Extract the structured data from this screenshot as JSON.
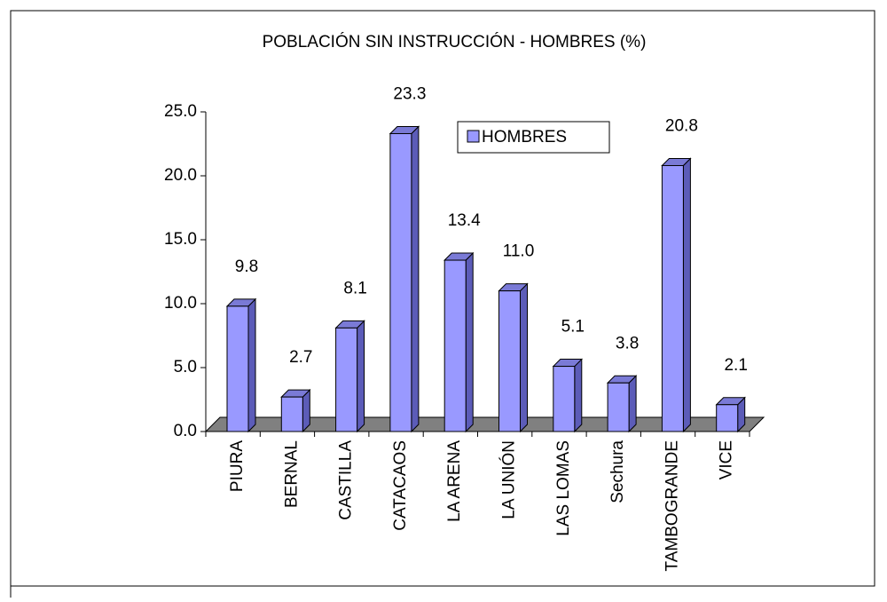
{
  "chart_data": {
    "type": "bar",
    "title": "POBLACIÓN SIN INSTRUCCIÓN - HOMBRES  (%)",
    "categories": [
      "PIURA",
      "BERNAL",
      "CASTILLA",
      "CATACAOS",
      "LA ARENA",
      "LA UNIÓN",
      "LAS LOMAS",
      "Sechura",
      "TAMBOGRANDE",
      "VICE"
    ],
    "series": [
      {
        "name": "HOMBRES",
        "color": "#9999ff",
        "values": [
          9.8,
          2.7,
          8.1,
          23.3,
          13.4,
          11.0,
          5.1,
          3.8,
          20.8,
          2.1
        ],
        "value_labels": [
          "9.8",
          "2.7",
          "8.1",
          "23.3",
          "13.4",
          "11.0",
          "5.1",
          "3.8",
          "20.8",
          "2.1"
        ]
      }
    ],
    "ylim": [
      0,
      25
    ],
    "yticks": [
      {
        "value": 0,
        "label": "0.0"
      },
      {
        "value": 5,
        "label": "5.0"
      },
      {
        "value": 10,
        "label": "10.0"
      },
      {
        "value": 15,
        "label": "15.0"
      },
      {
        "value": 20,
        "label": "20.0"
      },
      {
        "value": 25,
        "label": "25.0"
      }
    ],
    "legend": "top-right"
  }
}
